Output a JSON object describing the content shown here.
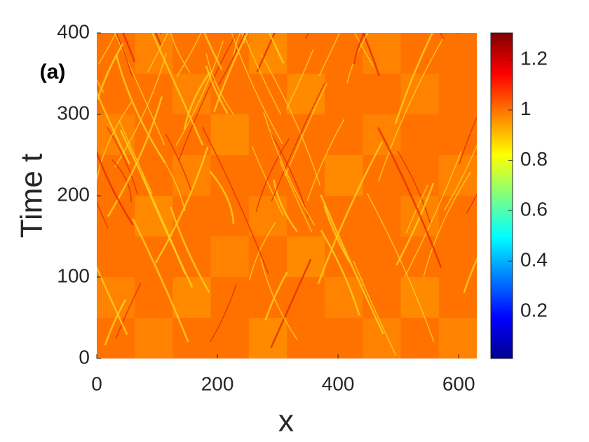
{
  "chart_data": {
    "type": "heatmap",
    "panel_label": "(a)",
    "xlabel": "x",
    "ylabel": "Time t",
    "xlim": [
      0,
      630
    ],
    "xticks": [
      0,
      200,
      400,
      600
    ],
    "ylim": [
      0,
      400
    ],
    "yticks": [
      0,
      100,
      200,
      300,
      400
    ],
    "clim": [
      0.013,
      1.306
    ],
    "cticks": [
      0.2,
      0.4,
      0.6,
      0.8,
      1,
      1.2
    ],
    "colormap": "jet",
    "z": [
      [
        1,
        0.98,
        1,
        1,
        0.97,
        1,
        1,
        0.98,
        1,
        1
      ],
      [
        1,
        1,
        0.98,
        1,
        1,
        0.97,
        1,
        1,
        0.98,
        1
      ],
      [
        0.98,
        1,
        1,
        0.97,
        1,
        1,
        1,
        0.98,
        1,
        1
      ],
      [
        1,
        1,
        0.98,
        1,
        1,
        1,
        0.97,
        1,
        1,
        0.98
      ],
      [
        1,
        0.97,
        1,
        1,
        0.98,
        1,
        1,
        1,
        0.98,
        1
      ],
      [
        1,
        1,
        1,
        0.98,
        1,
        0.97,
        1,
        1,
        1,
        1
      ],
      [
        0.98,
        1,
        0.97,
        1,
        1,
        1,
        0.98,
        1,
        0.97,
        1
      ],
      [
        1,
        0.98,
        1,
        1,
        0.97,
        1,
        1,
        0.98,
        1,
        0.98
      ]
    ]
  }
}
